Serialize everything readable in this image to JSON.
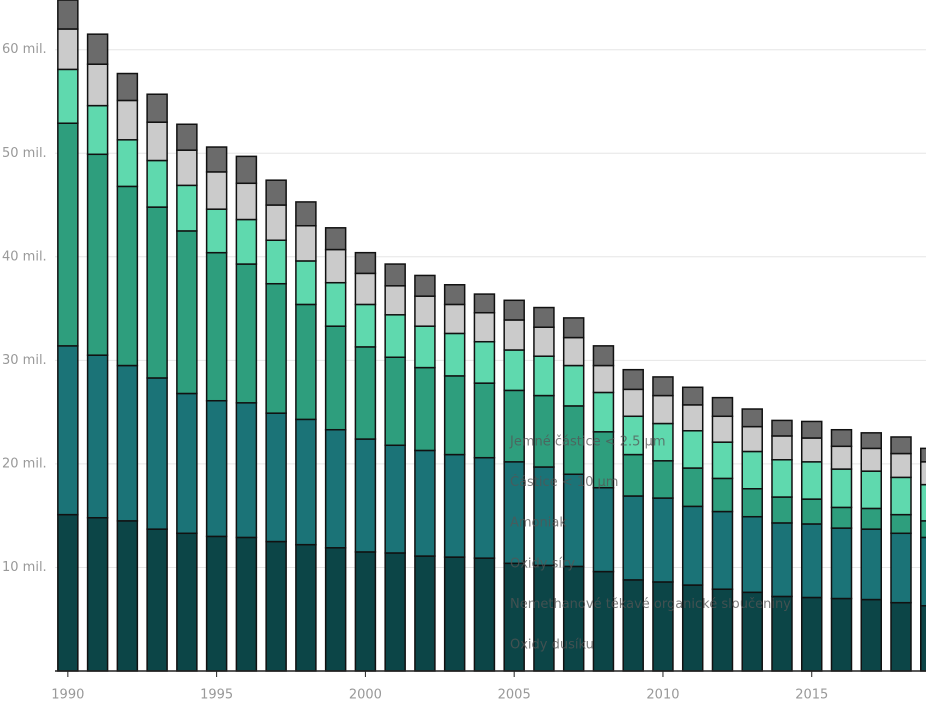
{
  "chart_data": {
    "type": "stacked_bar",
    "x": [
      1990,
      1991,
      1992,
      1993,
      1994,
      1995,
      1996,
      1997,
      1998,
      1999,
      2000,
      2001,
      2002,
      2003,
      2004,
      2005,
      2006,
      2007,
      2008,
      2009,
      2010,
      2011,
      2012,
      2013,
      2014,
      2015,
      2016,
      2017,
      2018,
      2019
    ],
    "series": [
      {
        "name": "Oxidy dusíku",
        "color": "#0c4547",
        "values": [
          15.1,
          14.8,
          14.5,
          13.7,
          13.3,
          13.0,
          12.9,
          12.5,
          12.2,
          11.9,
          11.5,
          11.4,
          11.1,
          11.0,
          10.9,
          10.4,
          10.2,
          10.1,
          9.6,
          8.8,
          8.6,
          8.3,
          7.9,
          7.6,
          7.2,
          7.1,
          7.0,
          6.9,
          6.6,
          6.3
        ]
      },
      {
        "name": "Nemethanové těkavé organické sloučeniny",
        "color": "#1b7377",
        "values": [
          16.3,
          15.7,
          15.0,
          14.6,
          13.5,
          13.1,
          13.0,
          12.4,
          12.1,
          11.4,
          10.9,
          10.4,
          10.2,
          9.9,
          9.7,
          9.8,
          9.5,
          8.9,
          8.1,
          8.1,
          8.1,
          7.6,
          7.5,
          7.3,
          7.1,
          7.1,
          6.8,
          6.8,
          6.7,
          6.6
        ]
      },
      {
        "name": "Oxidy síry",
        "color": "#2e9e7d",
        "values": [
          21.5,
          19.4,
          17.3,
          16.5,
          15.7,
          14.3,
          13.4,
          12.5,
          11.1,
          10.0,
          8.9,
          8.5,
          8.0,
          7.6,
          7.2,
          6.9,
          6.9,
          6.6,
          5.4,
          4.0,
          3.6,
          3.7,
          3.2,
          2.7,
          2.5,
          2.4,
          2.0,
          2.0,
          1.8,
          1.6
        ]
      },
      {
        "name": "Amoniak",
        "color": "#5fd9ae",
        "values": [
          5.2,
          4.7,
          4.5,
          4.5,
          4.4,
          4.2,
          4.3,
          4.2,
          4.2,
          4.2,
          4.1,
          4.1,
          4.0,
          4.1,
          4.0,
          3.9,
          3.8,
          3.9,
          3.8,
          3.7,
          3.6,
          3.6,
          3.5,
          3.6,
          3.6,
          3.6,
          3.7,
          3.6,
          3.6,
          3.5
        ]
      },
      {
        "name": "Částice < 10 µm",
        "color": "#cbcbcb",
        "values": [
          3.9,
          4.0,
          3.8,
          3.7,
          3.4,
          3.6,
          3.5,
          3.4,
          3.4,
          3.2,
          3.0,
          2.8,
          2.9,
          2.8,
          2.8,
          2.9,
          2.8,
          2.7,
          2.6,
          2.6,
          2.7,
          2.5,
          2.5,
          2.4,
          2.3,
          2.3,
          2.2,
          2.2,
          2.3,
          2.2
        ]
      },
      {
        "name": "Jemné částice < 2.5 µm",
        "color": "#6b6b6b",
        "values": [
          2.8,
          2.9,
          2.6,
          2.7,
          2.5,
          2.4,
          2.6,
          2.4,
          2.3,
          2.1,
          2.0,
          2.1,
          2.0,
          1.9,
          1.8,
          1.9,
          1.9,
          1.9,
          1.9,
          1.9,
          1.8,
          1.7,
          1.8,
          1.7,
          1.5,
          1.6,
          1.6,
          1.5,
          1.6,
          1.3
        ]
      }
    ],
    "xlim": [
      1987.72,
      2018.84
    ],
    "xticks": [
      1990,
      1995,
      2000,
      2005,
      2010,
      2015
    ],
    "ylim": [
      0,
      64.8
    ],
    "yticks": [
      {
        "value": 10,
        "label": "10 mil."
      },
      {
        "value": 20,
        "label": "20 mil."
      },
      {
        "value": 30,
        "label": "30 mil."
      },
      {
        "value": 40,
        "label": "40 mil."
      },
      {
        "value": 50,
        "label": "50 mil."
      },
      {
        "value": 60,
        "label": "60 mil."
      }
    ],
    "grid": true
  }
}
